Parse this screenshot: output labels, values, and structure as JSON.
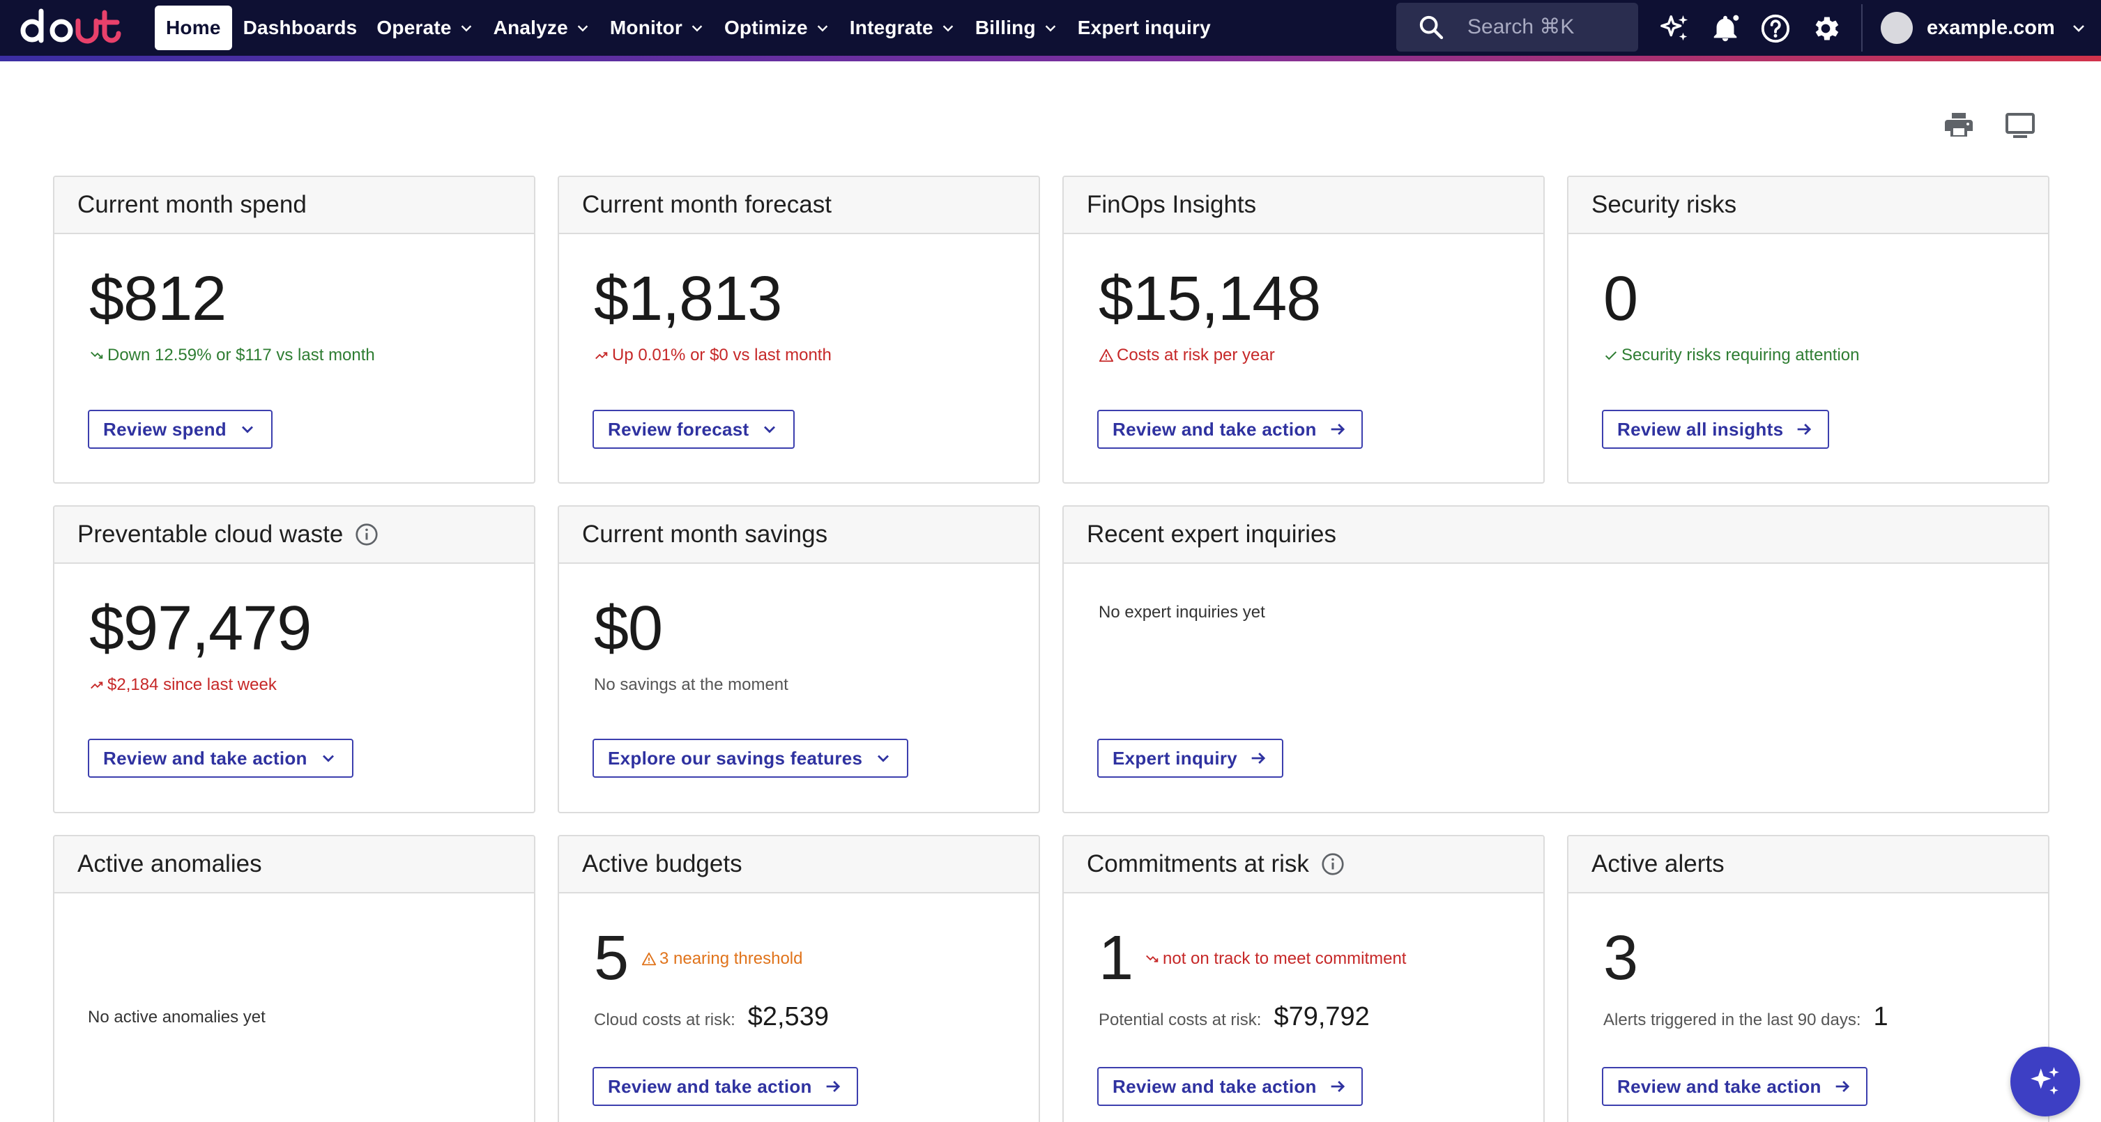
{
  "nav": {
    "home": "Home",
    "items": [
      "Dashboards",
      "Operate",
      "Analyze",
      "Monitor",
      "Optimize",
      "Integrate",
      "Billing",
      "Expert inquiry"
    ]
  },
  "search": {
    "placeholder": "Search ⌘K"
  },
  "account": {
    "name": "example.com"
  },
  "colors": {
    "nav_bg": "#0e1033",
    "accent": "#3c3fae",
    "positive": "#2e7d32",
    "negative": "#c62828",
    "warning": "#e0731b"
  },
  "cards": {
    "spend": {
      "title": "Current month spend",
      "value": "$812",
      "note": "Down 12.59% or $117 vs last month",
      "button": "Review spend"
    },
    "forecast": {
      "title": "Current month forecast",
      "value": "$1,813",
      "note": "Up 0.01% or $0 vs last month",
      "button": "Review forecast"
    },
    "finops": {
      "title": "FinOps Insights",
      "value": "$15,148",
      "note": "Costs at risk per year",
      "button": "Review and take action"
    },
    "security": {
      "title": "Security risks",
      "value": "0",
      "note": "Security risks requiring attention",
      "button": "Review all insights"
    },
    "waste": {
      "title": "Preventable cloud waste",
      "value": "$97,479",
      "note": "$2,184 since last week",
      "button": "Review and take action"
    },
    "savings": {
      "title": "Current month savings",
      "value": "$0",
      "note": "No savings at the moment",
      "button": "Explore our savings features"
    },
    "inquiries": {
      "title": "Recent expert inquiries",
      "empty": "No expert inquiries yet",
      "button": "Expert inquiry"
    },
    "anomalies": {
      "title": "Active anomalies",
      "empty": "No active anomalies yet"
    },
    "budgets": {
      "title": "Active budgets",
      "value": "5",
      "badge": "3 nearing threshold",
      "risk_label": "Cloud costs at risk:",
      "risk_value": "$2,539",
      "button": "Review and take action"
    },
    "commitments": {
      "title": "Commitments at risk",
      "value": "1",
      "badge": "not on track to meet commitment",
      "risk_label": "Potential costs at risk:",
      "risk_value": "$79,792",
      "button": "Review and take action"
    },
    "alerts": {
      "title": "Active alerts",
      "value": "3",
      "triggered_label": "Alerts triggered in the last 90 days:",
      "triggered_value": "1",
      "button": "Review and take action"
    }
  }
}
